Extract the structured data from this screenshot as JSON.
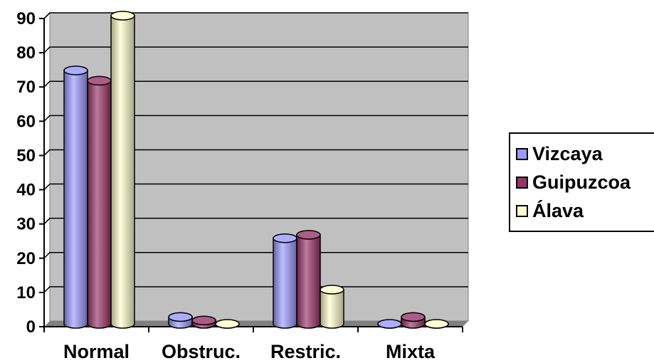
{
  "chart_data": {
    "type": "bar",
    "title": "",
    "xlabel": "",
    "ylabel": "",
    "categories": [
      "Normal",
      "Obstruc.",
      "Restric.",
      "Mixta"
    ],
    "series": [
      {
        "name": "Vizcaya",
        "color": "#9999ff",
        "values": [
          74,
          2,
          25,
          0
        ]
      },
      {
        "name": "Guipuzcoa",
        "color": "#993366",
        "values": [
          71,
          1,
          26,
          2
        ]
      },
      {
        "name": "Álava",
        "color": "#ffffcc",
        "values": [
          90,
          0,
          10,
          0
        ]
      }
    ],
    "ylim": [
      0,
      90
    ],
    "yticks": [
      0,
      10,
      20,
      30,
      40,
      50,
      60,
      70,
      80,
      90
    ],
    "grid": true,
    "legend_position": "right",
    "plot_background": "#c0c0c0"
  }
}
